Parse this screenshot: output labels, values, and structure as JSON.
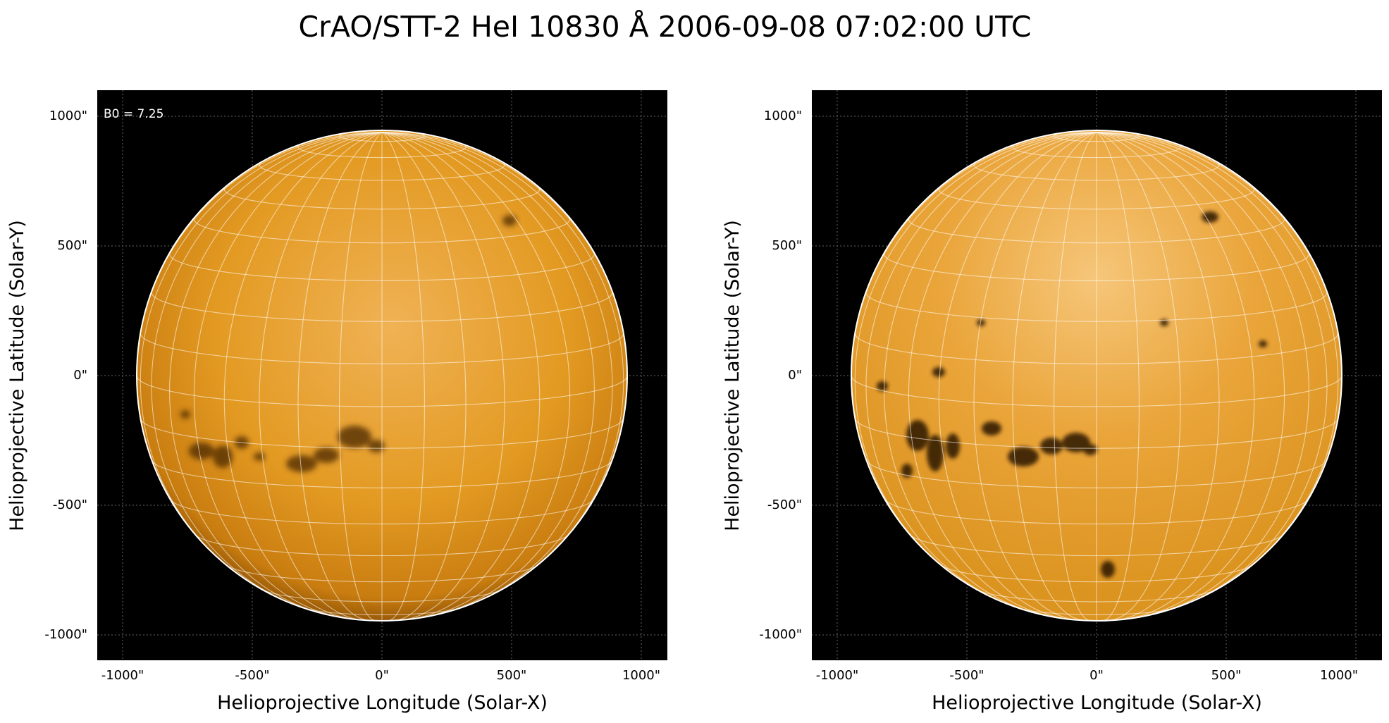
{
  "title": "CrAO/STT-2 HeI 10830 Å 2006-09-08 07:02:00 UTC",
  "colors": {
    "disk_light": "#f2b85a",
    "disk_mid": "#e69a1e",
    "disk_dark": "#6a3a05",
    "limb": "#ffffff",
    "background": "#000000"
  },
  "panels": [
    {
      "annotation": "B0 = 7.25",
      "xlabel": "Helioprojective Longitude (Solar-X)",
      "ylabel": "Helioprojective Latitude (Solar-Y)",
      "xticks": [
        "-1000\"",
        "-500\"",
        "0\"",
        "500\"",
        "1000\""
      ],
      "yticks": [
        "1000\"",
        "500\"",
        "0\"",
        "-500\"",
        "-1000\""
      ]
    },
    {
      "annotation": "",
      "xlabel": "Helioprojective Longitude (Solar-X)",
      "ylabel": "Helioprojective Latitude (Solar-Y)",
      "xticks": [
        "-1000\"",
        "-500\"",
        "0\"",
        "500\"",
        "1000\""
      ],
      "yticks": [
        "1000\"",
        "500\"",
        "0\"",
        "-500\"",
        "-1000\""
      ]
    }
  ]
}
